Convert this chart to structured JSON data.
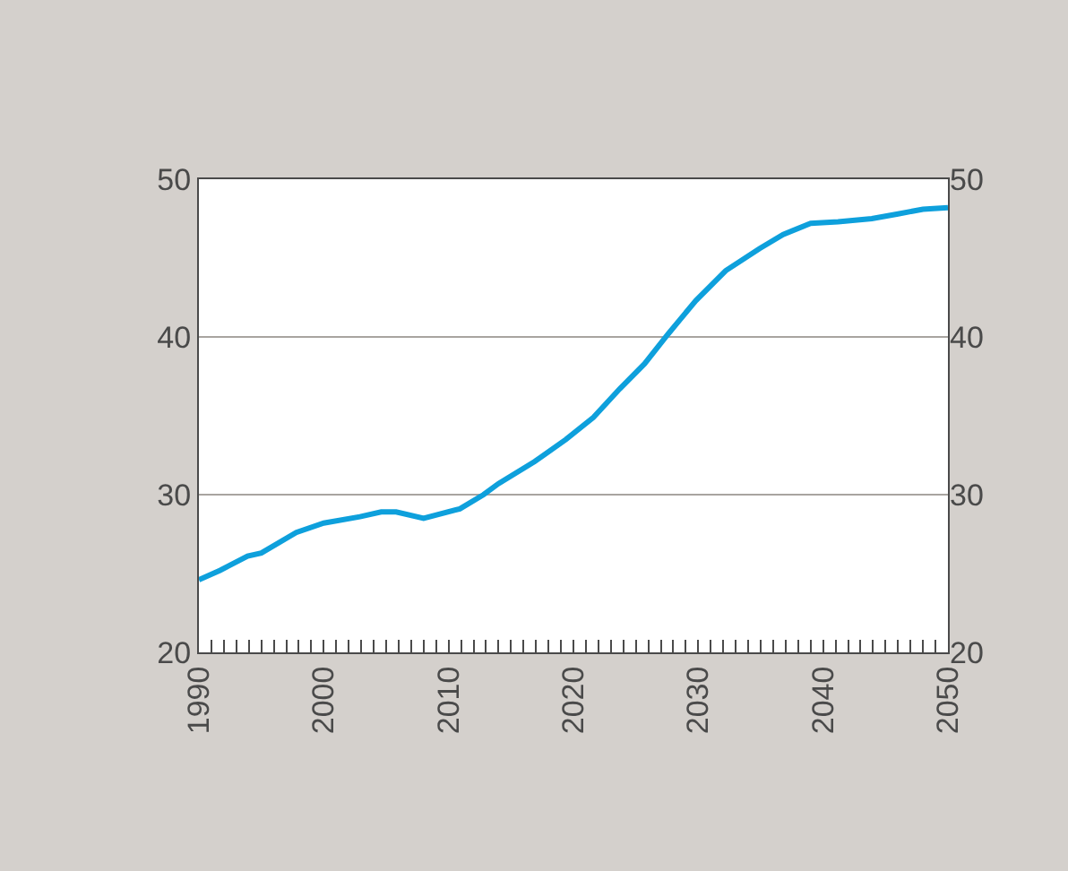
{
  "chart_data": {
    "type": "line",
    "x": [
      1990,
      1991.7,
      1993.9,
      1995,
      1997.8,
      2000,
      2002.9,
      2004.6,
      2005.8,
      2008,
      2010.9,
      2012.8,
      2014,
      2016.9,
      2019.4,
      2021.6,
      2023.7,
      2025.7,
      2027.6,
      2029.8,
      2032.2,
      2034.9,
      2036.8,
      2039,
      2041.2,
      2043.9,
      2046,
      2048,
      2050
    ],
    "series": [
      {
        "color": "#0ea0dc",
        "values": [
          24.6,
          25.2,
          26.1,
          26.3,
          27.6,
          28.2,
          28.6,
          28.9,
          28.9,
          28.5,
          29.1,
          30.0,
          30.7,
          32.1,
          33.5,
          34.9,
          36.7,
          38.3,
          40.2,
          42.3,
          44.2,
          45.6,
          46.5,
          47.2,
          47.3,
          47.5,
          47.8,
          48.1,
          48.2
        ]
      }
    ],
    "xlim": [
      1990,
      2050
    ],
    "xticks": [
      1990,
      {
        "value": 1991,
        "label": null
      },
      {
        "value": 1992,
        "label": null
      },
      {
        "value": 1993,
        "label": null
      },
      {
        "value": 1994,
        "label": null
      },
      {
        "value": 1995,
        "label": null
      },
      {
        "value": 1996,
        "label": null
      },
      {
        "value": 1997,
        "label": null
      },
      {
        "value": 1998,
        "label": null
      },
      {
        "value": 1999,
        "label": null
      },
      2000,
      {
        "value": 2001,
        "label": null
      },
      {
        "value": 2002,
        "label": null
      },
      {
        "value": 2003,
        "label": null
      },
      {
        "value": 2004,
        "label": null
      },
      {
        "value": 2005,
        "label": null
      },
      {
        "value": 2006,
        "label": null
      },
      {
        "value": 2007,
        "label": null
      },
      {
        "value": 2008,
        "label": null
      },
      {
        "value": 2009,
        "label": null
      },
      2010,
      {
        "value": 2011,
        "label": null
      },
      {
        "value": 2012,
        "label": null
      },
      {
        "value": 2013,
        "label": null
      },
      {
        "value": 2014,
        "label": null
      },
      {
        "value": 2015,
        "label": null
      },
      {
        "value": 2016,
        "label": null
      },
      {
        "value": 2017,
        "label": null
      },
      {
        "value": 2018,
        "label": null
      },
      {
        "value": 2019,
        "label": null
      },
      2020,
      {
        "value": 2021,
        "label": null
      },
      {
        "value": 2022,
        "label": null
      },
      {
        "value": 2023,
        "label": null
      },
      {
        "value": 2024,
        "label": null
      },
      {
        "value": 2025,
        "label": null
      },
      {
        "value": 2026,
        "label": null
      },
      {
        "value": 2027,
        "label": null
      },
      {
        "value": 2028,
        "label": null
      },
      {
        "value": 2029,
        "label": null
      },
      2030,
      {
        "value": 2031,
        "label": null
      },
      {
        "value": 2032,
        "label": null
      },
      {
        "value": 2033,
        "label": null
      },
      {
        "value": 2034,
        "label": null
      },
      {
        "value": 2035,
        "label": null
      },
      {
        "value": 2036,
        "label": null
      },
      {
        "value": 2037,
        "label": null
      },
      {
        "value": 2038,
        "label": null
      },
      {
        "value": 2039,
        "label": null
      },
      2040,
      {
        "value": 2041,
        "label": null
      },
      {
        "value": 2042,
        "label": null
      },
      {
        "value": 2043,
        "label": null
      },
      {
        "value": 2044,
        "label": null
      },
      {
        "value": 2045,
        "label": null
      },
      {
        "value": 2046,
        "label": null
      },
      {
        "value": 2047,
        "label": null
      },
      {
        "value": 2048,
        "label": null
      },
      {
        "value": 2049,
        "label": null
      },
      2050
    ],
    "ylim": [
      20,
      50
    ],
    "yticks": [
      20,
      30,
      40,
      50
    ],
    "y2lim": [
      20,
      50
    ],
    "y2ticks": [
      20,
      30,
      40,
      50
    ],
    "grid": "y",
    "marker": "none",
    "line_style": "solid"
  }
}
